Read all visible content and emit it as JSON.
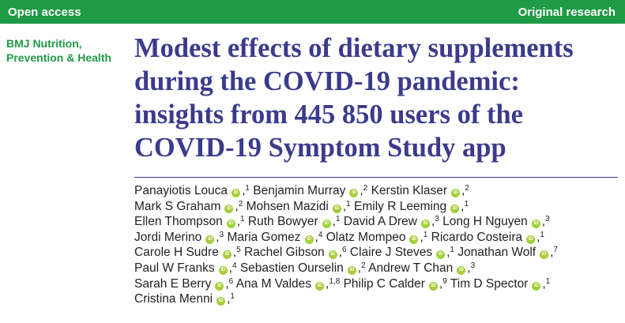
{
  "header": {
    "left_label": "Open access",
    "right_label": "Original research"
  },
  "journal": {
    "line1": "BMJ Nutrition,",
    "line2": "Prevention & Health"
  },
  "title_lines": [
    "Modest effects of dietary supplements",
    "during the COVID-19 pandemic:",
    "insights from 445 850 users of the",
    "COVID-19 Symptom Study app"
  ],
  "orcid_badge": "iD",
  "authors": [
    {
      "name": "Panayiotis Louca",
      "aff": "1"
    },
    {
      "name": "Benjamin Murray",
      "aff": "2"
    },
    {
      "name": "Kerstin Klaser",
      "aff": "2"
    },
    {
      "name": "Mark S Graham",
      "aff": "2"
    },
    {
      "name": "Mohsen Mazidi",
      "aff": "1"
    },
    {
      "name": "Emily R Leeming",
      "aff": "1"
    },
    {
      "name": "Ellen Thompson",
      "aff": "1"
    },
    {
      "name": "Ruth Bowyer",
      "aff": "1"
    },
    {
      "name": "David A Drew",
      "aff": "3"
    },
    {
      "name": "Long H Nguyen",
      "aff": "3"
    },
    {
      "name": "Jordi Merino",
      "aff": "3"
    },
    {
      "name": "Maria Gomez",
      "aff": "4"
    },
    {
      "name": "Olatz Mompeo",
      "aff": "1"
    },
    {
      "name": "Ricardo Costeira",
      "aff": "1"
    },
    {
      "name": "Carole H Sudre",
      "aff": "5"
    },
    {
      "name": "Rachel Gibson",
      "aff": "6"
    },
    {
      "name": "Claire J Steves",
      "aff": "1"
    },
    {
      "name": "Jonathan Wolf",
      "aff": "7"
    },
    {
      "name": "Paul W Franks",
      "aff": "4"
    },
    {
      "name": "Sebastien Ourselin",
      "aff": "2"
    },
    {
      "name": "Andrew T Chan",
      "aff": "3"
    },
    {
      "name": "Sarah E Berry",
      "aff": "6"
    },
    {
      "name": "Ana M Valdes",
      "aff": "1,8"
    },
    {
      "name": "Philip C Calder",
      "aff": "9"
    },
    {
      "name": "Tim D Spector",
      "aff": "1"
    },
    {
      "name": "Cristina Menni",
      "aff": "1"
    }
  ],
  "colors": {
    "green": "#1f9a45",
    "title": "#3b3b8c",
    "orcid": "#a6ce39"
  }
}
